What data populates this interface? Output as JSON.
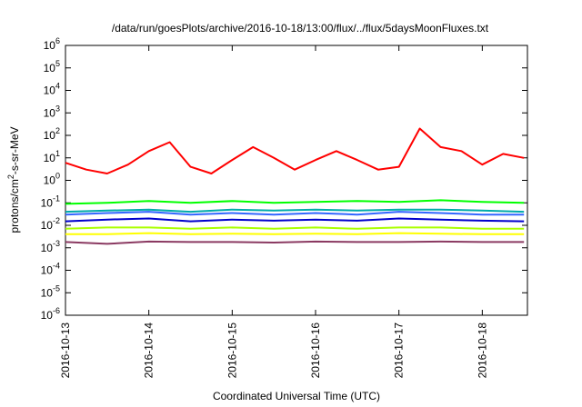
{
  "chart_data": {
    "type": "line",
    "title": "/data/run/goesPlots/archive/2016-10-18/13:00/flux/../flux/5daysMoonFluxes.txt",
    "xlabel": "Coordinated Universal Time (UTC)",
    "ylabel": {
      "prefix": "protons/cm",
      "sup": "2",
      "suffix": "-s-sr-MeV"
    },
    "yscale": "log",
    "ylim": [
      1e-06,
      1000000.0
    ],
    "y_ticks": [
      {
        "mantissa": "10",
        "exp": "6"
      },
      {
        "mantissa": "10",
        "exp": "5"
      },
      {
        "mantissa": "10",
        "exp": "4"
      },
      {
        "mantissa": "10",
        "exp": "3"
      },
      {
        "mantissa": "10",
        "exp": "2"
      },
      {
        "mantissa": "10",
        "exp": "1"
      },
      {
        "mantissa": "10",
        "exp": "0"
      },
      {
        "mantissa": "10",
        "exp": "-1"
      },
      {
        "mantissa": "10",
        "exp": "-2"
      },
      {
        "mantissa": "10",
        "exp": "-3"
      },
      {
        "mantissa": "10",
        "exp": "-4"
      },
      {
        "mantissa": "10",
        "exp": "-5"
      },
      {
        "mantissa": "10",
        "exp": "-6"
      }
    ],
    "xlim": [
      "2016-10-13",
      "2016-10-18 13:00"
    ],
    "x_ticks": [
      "2016-10-13",
      "2016-10-14",
      "2016-10-15",
      "2016-10-16",
      "2016-10-17",
      "2016-10-18"
    ],
    "grid": false,
    "series": [
      {
        "color": "#ff0000",
        "x_days": [
          0,
          0.25,
          0.5,
          0.75,
          1,
          1.25,
          1.5,
          1.75,
          2,
          2.25,
          2.5,
          2.75,
          3,
          3.25,
          3.5,
          3.75,
          4,
          4.25,
          4.5,
          4.75,
          5,
          5.25,
          5.5
        ],
        "values": [
          6,
          3,
          2,
          5,
          20,
          50,
          4,
          2,
          8,
          30,
          10,
          3,
          8,
          20,
          8,
          3,
          4,
          200,
          30,
          20,
          5,
          15,
          10
        ]
      },
      {
        "color": "#00ff00",
        "x_days": [
          0,
          0.5,
          1,
          1.5,
          2,
          2.5,
          3,
          3.5,
          4,
          4.5,
          5,
          5.5
        ],
        "values": [
          0.09,
          0.1,
          0.12,
          0.1,
          0.12,
          0.1,
          0.11,
          0.12,
          0.11,
          0.13,
          0.11,
          0.1
        ]
      },
      {
        "color": "#00aaaa",
        "x_days": [
          0,
          0.5,
          1,
          1.5,
          2,
          2.5,
          3,
          3.5,
          4,
          4.5,
          5,
          5.5
        ],
        "values": [
          0.04,
          0.045,
          0.05,
          0.04,
          0.05,
          0.045,
          0.05,
          0.045,
          0.05,
          0.05,
          0.045,
          0.04
        ]
      },
      {
        "color": "#3366ff",
        "x_days": [
          0,
          0.5,
          1,
          1.5,
          2,
          2.5,
          3,
          3.5,
          4,
          4.5,
          5,
          5.5
        ],
        "values": [
          0.03,
          0.035,
          0.04,
          0.03,
          0.035,
          0.03,
          0.035,
          0.03,
          0.04,
          0.035,
          0.03,
          0.03
        ]
      },
      {
        "color": "#0000cc",
        "x_days": [
          0,
          0.5,
          1,
          1.5,
          2,
          2.5,
          3,
          3.5,
          4,
          4.5,
          5,
          5.5
        ],
        "values": [
          0.015,
          0.018,
          0.02,
          0.015,
          0.018,
          0.016,
          0.018,
          0.016,
          0.02,
          0.018,
          0.016,
          0.015
        ]
      },
      {
        "color": "#aaff00",
        "x_days": [
          0,
          0.5,
          1,
          1.5,
          2,
          2.5,
          3,
          3.5,
          4,
          4.5,
          5,
          5.5
        ],
        "values": [
          0.007,
          0.008,
          0.008,
          0.007,
          0.008,
          0.007,
          0.008,
          0.007,
          0.008,
          0.008,
          0.007,
          0.007
        ]
      },
      {
        "color": "#ffff00",
        "x_days": [
          0,
          0.5,
          1,
          1.5,
          2,
          2.5,
          3,
          3.5,
          4,
          4.5,
          5,
          5.5
        ],
        "values": [
          0.004,
          0.004,
          0.0045,
          0.004,
          0.0042,
          0.004,
          0.0042,
          0.004,
          0.0045,
          0.0042,
          0.004,
          0.004
        ]
      },
      {
        "color": "#8b3a62",
        "x_days": [
          0,
          0.5,
          1,
          1.5,
          2,
          2.5,
          3,
          3.5,
          4,
          4.5,
          5,
          5.5
        ],
        "values": [
          0.0018,
          0.0015,
          0.0019,
          0.0018,
          0.0018,
          0.0017,
          0.0019,
          0.0018,
          0.0018,
          0.0019,
          0.0018,
          0.0018
        ]
      }
    ]
  }
}
